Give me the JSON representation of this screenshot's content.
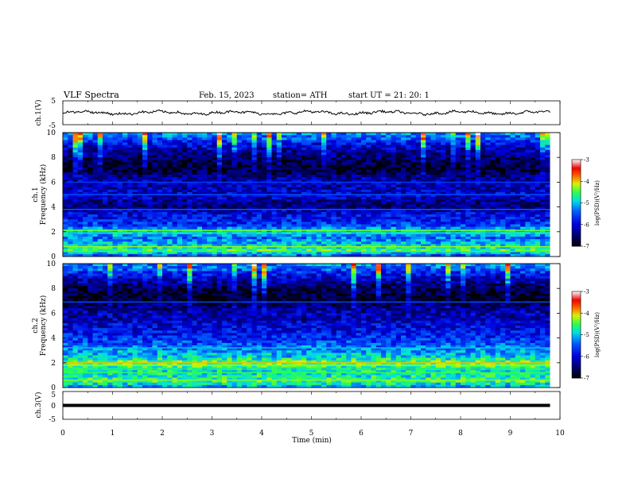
{
  "header": {
    "title": "VLF  Spectra",
    "date": "Feb. 15,  2023",
    "station": "station= ATH",
    "start": "start  UT  =    21: 20: 1"
  },
  "chart_data": [
    {
      "type": "line",
      "id": "ch1-waveform",
      "ylabel": "ch.1(V)",
      "ylim": [
        -5,
        5
      ],
      "yticks": [
        "5",
        "-5"
      ],
      "xlim": [
        0,
        10
      ],
      "trace_level": 0,
      "description_of_trace": "noisy black waveform near 0 V, spanning 0 to ~9.8 min"
    },
    {
      "type": "heatmap",
      "id": "ch1-spectrogram",
      "ylabel": "ch.1\nFrequency  (kHz)",
      "ylabel_lines": [
        "ch.1",
        "Frequency  (kHz)"
      ],
      "ylim": [
        0,
        10
      ],
      "yticks": [
        "0",
        "2",
        "4",
        "6",
        "8",
        "10"
      ],
      "xlim": [
        0,
        10
      ],
      "data_extent_min": 9.8,
      "colorbar": {
        "label": "log(PSD)(V²/Hz)",
        "range": [
          -7,
          -3
        ],
        "ticks": [
          "-3",
          "-4",
          "-5",
          "-6",
          "-7"
        ]
      },
      "profile": [
        {
          "f": 0.0,
          "v": -5.6
        },
        {
          "f": 0.5,
          "v": -4.6
        },
        {
          "f": 1.0,
          "v": -5.0
        },
        {
          "f": 1.5,
          "v": -5.4
        },
        {
          "f": 2.0,
          "v": -4.8
        },
        {
          "f": 2.5,
          "v": -5.6
        },
        {
          "f": 3.0,
          "v": -5.8
        },
        {
          "f": 3.5,
          "v": -6.0
        },
        {
          "f": 4.0,
          "v": -6.5
        },
        {
          "f": 4.5,
          "v": -6.3
        },
        {
          "f": 5.0,
          "v": -6.0
        },
        {
          "f": 5.5,
          "v": -6.2
        },
        {
          "f": 6.0,
          "v": -6.2
        },
        {
          "f": 6.5,
          "v": -6.4
        },
        {
          "f": 7.0,
          "v": -6.8
        },
        {
          "f": 7.5,
          "v": -6.7
        },
        {
          "f": 8.0,
          "v": -6.5
        },
        {
          "f": 8.5,
          "v": -6.3
        },
        {
          "f": 9.0,
          "v": -6.0
        },
        {
          "f": 9.5,
          "v": -5.5
        },
        {
          "f": 10.0,
          "v": -5.2
        }
      ],
      "lines": [
        {
          "f": 2.1,
          "v": -4.4
        },
        {
          "f": 1.9,
          "v": -4.8
        },
        {
          "f": 0.8,
          "v": -4.3
        },
        {
          "f": 0.4,
          "v": -4.5
        },
        {
          "f": 5.0,
          "v": -5.5
        },
        {
          "f": 6.0,
          "v": -5.6
        },
        {
          "f": 3.8,
          "v": -5.4
        }
      ]
    },
    {
      "type": "heatmap",
      "id": "ch2-spectrogram",
      "ylabel": "ch.2\nFrequency  (kHz)",
      "ylabel_lines": [
        "ch.2",
        "Frequency  (kHz)"
      ],
      "ylim": [
        0,
        10
      ],
      "yticks": [
        "0",
        "2",
        "4",
        "6",
        "8",
        "10"
      ],
      "xlim": [
        0,
        10
      ],
      "data_extent_min": 9.8,
      "colorbar": {
        "label": "log(PSD)(V²/Hz)",
        "range": [
          -7,
          -3
        ],
        "ticks": [
          "-3",
          "-4",
          "-5",
          "-6",
          "-7"
        ]
      },
      "profile": [
        {
          "f": 0.0,
          "v": -5.2
        },
        {
          "f": 0.5,
          "v": -4.6
        },
        {
          "f": 1.0,
          "v": -4.8
        },
        {
          "f": 1.5,
          "v": -4.8
        },
        {
          "f": 2.0,
          "v": -4.4
        },
        {
          "f": 2.5,
          "v": -5.0
        },
        {
          "f": 3.0,
          "v": -5.2
        },
        {
          "f": 3.5,
          "v": -5.5
        },
        {
          "f": 4.0,
          "v": -5.7
        },
        {
          "f": 4.5,
          "v": -5.9
        },
        {
          "f": 5.0,
          "v": -6.0
        },
        {
          "f": 5.5,
          "v": -6.2
        },
        {
          "f": 6.0,
          "v": -6.2
        },
        {
          "f": 6.5,
          "v": -6.4
        },
        {
          "f": 7.0,
          "v": -6.8
        },
        {
          "f": 7.5,
          "v": -6.8
        },
        {
          "f": 8.0,
          "v": -6.6
        },
        {
          "f": 8.5,
          "v": -6.3
        },
        {
          "f": 9.0,
          "v": -6.0
        },
        {
          "f": 9.5,
          "v": -5.5
        },
        {
          "f": 10.0,
          "v": -5.2
        }
      ],
      "lines": [
        {
          "f": 2.0,
          "v": -4.0
        },
        {
          "f": 1.8,
          "v": -4.2
        },
        {
          "f": 1.5,
          "v": -4.6
        },
        {
          "f": 1.2,
          "v": -4.5
        },
        {
          "f": 3.2,
          "v": -5.0
        },
        {
          "f": 0.6,
          "v": -4.3
        },
        {
          "f": 6.9,
          "v": -5.5
        }
      ]
    },
    {
      "type": "line",
      "id": "ch3-waveform",
      "ylabel": "ch.3(V)",
      "ylim": [
        -5,
        5
      ],
      "yticks": [
        "5",
        "0",
        "-5"
      ],
      "xlim": [
        0,
        10
      ],
      "trace_level": 0,
      "description_of_trace": "flat thick black line at 0 V, spanning 0 to ~9.8 min"
    }
  ],
  "xaxis": {
    "label": "Time  (min)",
    "ticks": [
      "0",
      "1",
      "2",
      "3",
      "4",
      "5",
      "6",
      "7",
      "8",
      "9",
      "10"
    ],
    "range": [
      0,
      10
    ]
  }
}
